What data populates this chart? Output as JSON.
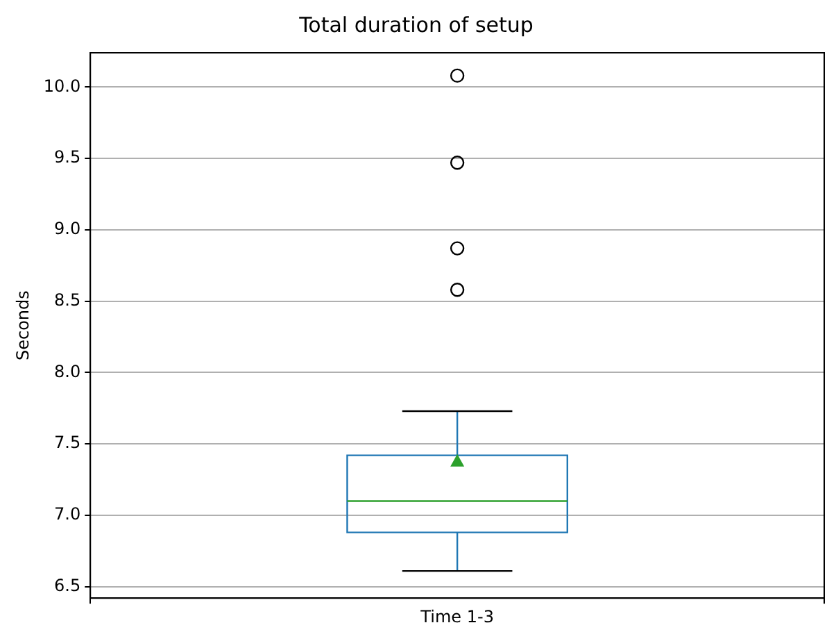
{
  "chart_data": {
    "type": "box",
    "title": "Total duration of setup",
    "ylabel": "Seconds",
    "categories": [
      "Time 1-3"
    ],
    "series": [
      {
        "color": "#1f77b4",
        "boxes": [
          {
            "low": 6.61,
            "q1": 6.88,
            "median": 7.1,
            "q3": 7.42,
            "high": 7.73,
            "mean": 7.38,
            "outliers": [
              8.58,
              8.87,
              9.47,
              10.08
            ]
          }
        ]
      }
    ],
    "ylim": [
      6.42,
      10.24
    ],
    "yticks": [
      {
        "value": 6.5,
        "label": "6.5"
      },
      {
        "value": 7,
        "label": "7.0"
      },
      {
        "value": 7.5,
        "label": "7.5"
      },
      {
        "value": 8,
        "label": "8.0"
      },
      {
        "value": 8.5,
        "label": "8.5"
      },
      {
        "value": 9,
        "label": "9.0"
      },
      {
        "value": 9.5,
        "label": "9.5"
      },
      {
        "value": 10,
        "label": "10.0"
      }
    ],
    "grid": true,
    "legend": false,
    "marker": "circle"
  }
}
